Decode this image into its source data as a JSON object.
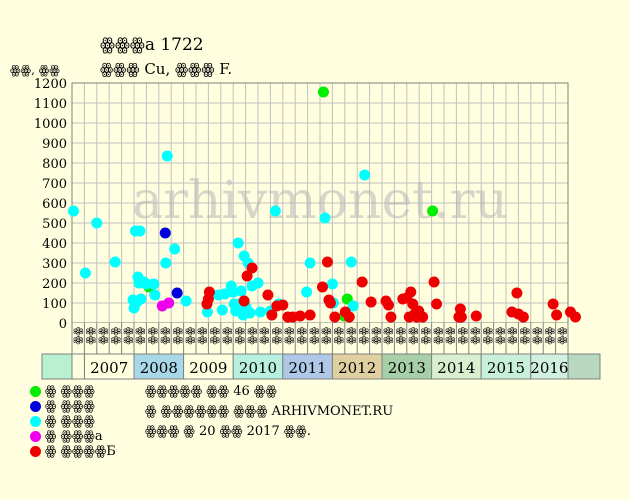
{
  "chart_data": {
    "type": "scatter",
    "title": "ꙮꙮꙮа 1722",
    "subtitle": "ꙮꙮꙮ Cu, ꙮꙮꙮ F.",
    "ylabel": "ꙮꙮ, ꙮꙮ",
    "ylim": [
      0,
      1200
    ],
    "yticks": [
      0,
      100,
      200,
      300,
      400,
      500,
      600,
      700,
      800,
      900,
      1000,
      1100,
      1200
    ],
    "grid": true,
    "watermark": "arhivmonet.ru",
    "quarters": [
      "ꙮꙮ",
      "ꙮꙮ",
      "ꙮꙮ",
      "ꙮꙮ",
      "ꙮꙮ",
      "ꙮꙮ",
      "ꙮꙮ",
      "ꙮꙮ",
      "ꙮꙮ",
      "ꙮꙮ",
      "ꙮꙮ",
      "ꙮꙮ",
      "ꙮꙮ",
      "ꙮꙮ",
      "ꙮꙮ",
      "ꙮꙮ",
      "ꙮꙮ",
      "ꙮꙮ",
      "ꙮꙮ",
      "ꙮꙮ",
      "ꙮꙮ",
      "ꙮꙮ",
      "ꙮꙮ",
      "ꙮꙮ",
      "ꙮꙮ",
      "ꙮꙮ",
      "ꙮꙮ",
      "ꙮꙮ",
      "ꙮꙮ",
      "ꙮꙮ",
      "ꙮꙮ",
      "ꙮꙮ",
      "ꙮꙮ",
      "ꙮꙮ",
      "ꙮꙮ",
      "ꙮꙮ",
      "ꙮꙮ",
      "ꙮꙮ",
      "ꙮꙮ",
      "ꙮꙮ"
    ],
    "years": [
      {
        "label": "2007",
        "color": "#ffffe0"
      },
      {
        "label": "2008",
        "color": "#a8d8e8"
      },
      {
        "label": "2009",
        "color": "#ffffe0"
      },
      {
        "label": "2010",
        "color": "#b8f0e0"
      },
      {
        "label": "2011",
        "color": "#b0c8e8"
      },
      {
        "label": "2012",
        "color": "#e0d0a0"
      },
      {
        "label": "2013",
        "color": "#a8d0a8"
      },
      {
        "label": "2014",
        "color": "#d8f0d0"
      },
      {
        "label": "2015",
        "color": "#c8f0d8"
      },
      {
        "label": "2016",
        "color": "#d0f0e0"
      }
    ],
    "first_cell_color": "#b8f0d0",
    "last_cell_color": "#b8d8c0",
    "series": [
      {
        "name": "ꙮ ꙮꙮꙮ",
        "color": "#00ee00",
        "points": [
          [
            2008.3,
            180
          ],
          [
            2011.82,
            1155
          ],
          [
            2012.24,
            35
          ],
          [
            2012.3,
            120
          ],
          [
            2014.02,
            560
          ]
        ]
      },
      {
        "name": "ꙮ ꙮꙮꙮ",
        "color": "#0000dd",
        "points": [
          [
            2008.63,
            450
          ],
          [
            2008.87,
            150
          ]
        ]
      },
      {
        "name": "ꙮ ꙮꙮꙮ",
        "color": "#00ffff",
        "points": [
          [
            2006.78,
            560
          ],
          [
            2007.02,
            250
          ],
          [
            2007.25,
            500
          ],
          [
            2007.62,
            305
          ],
          [
            2007.98,
            115
          ],
          [
            2008.0,
            75
          ],
          [
            2008.03,
            460
          ],
          [
            2008.06,
            105
          ],
          [
            2008.08,
            230
          ],
          [
            2008.1,
            200
          ],
          [
            2008.12,
            460
          ],
          [
            2008.14,
            120
          ],
          [
            2008.2,
            205
          ],
          [
            2008.25,
            195
          ],
          [
            2008.4,
            195
          ],
          [
            2008.42,
            140
          ],
          [
            2008.67,
            835
          ],
          [
            2008.64,
            300
          ],
          [
            2008.82,
            370
          ],
          [
            2009.05,
            110
          ],
          [
            2009.48,
            55
          ],
          [
            2009.7,
            140
          ],
          [
            2009.78,
            65
          ],
          [
            2009.83,
            145
          ],
          [
            2009.96,
            185
          ],
          [
            2010.0,
            155
          ],
          [
            2010.02,
            95
          ],
          [
            2010.05,
            60
          ],
          [
            2010.1,
            400
          ],
          [
            2010.13,
            95
          ],
          [
            2010.16,
            160
          ],
          [
            2010.2,
            40
          ],
          [
            2010.22,
            335
          ],
          [
            2010.26,
            80
          ],
          [
            2010.3,
            300
          ],
          [
            2010.34,
            50
          ],
          [
            2010.38,
            185
          ],
          [
            2010.5,
            200
          ],
          [
            2010.55,
            55
          ],
          [
            2010.75,
            60
          ],
          [
            2010.85,
            560
          ],
          [
            2010.92,
            95
          ],
          [
            2011.48,
            155
          ],
          [
            2011.55,
            300
          ],
          [
            2011.85,
            525
          ],
          [
            2012.0,
            195
          ],
          [
            2012.02,
            100
          ],
          [
            2012.38,
            305
          ],
          [
            2012.65,
            740
          ],
          [
            2012.42,
            85
          ]
        ]
      },
      {
        "name": "ꙮ ꙮꙮꙮа",
        "color": "#ee00ee",
        "points": [
          [
            2008.57,
            85
          ],
          [
            2008.7,
            100
          ]
        ]
      },
      {
        "name": "ꙮ ꙮꙮꙮꙮБ",
        "color": "#ee0000",
        "points": [
          [
            2009.47,
            95
          ],
          [
            2009.5,
            120
          ],
          [
            2009.52,
            155
          ],
          [
            2010.22,
            110
          ],
          [
            2010.28,
            235
          ],
          [
            2010.38,
            275
          ],
          [
            2010.7,
            140
          ],
          [
            2010.78,
            40
          ],
          [
            2010.88,
            85
          ],
          [
            2011.0,
            90
          ],
          [
            2011.1,
            30
          ],
          [
            2011.2,
            30
          ],
          [
            2011.35,
            35
          ],
          [
            2011.55,
            40
          ],
          [
            2011.8,
            180
          ],
          [
            2011.9,
            305
          ],
          [
            2011.93,
            115
          ],
          [
            2011.96,
            100
          ],
          [
            2012.05,
            30
          ],
          [
            2012.26,
            55
          ],
          [
            2012.34,
            30
          ],
          [
            2012.6,
            205
          ],
          [
            2012.78,
            105
          ],
          [
            2013.08,
            110
          ],
          [
            2013.13,
            90
          ],
          [
            2013.18,
            30
          ],
          [
            2013.42,
            120
          ],
          [
            2013.5,
            125
          ],
          [
            2013.55,
            30
          ],
          [
            2013.58,
            155
          ],
          [
            2013.62,
            95
          ],
          [
            2013.66,
            45
          ],
          [
            2013.7,
            30
          ],
          [
            2013.74,
            60
          ],
          [
            2013.82,
            30
          ],
          [
            2014.05,
            205
          ],
          [
            2014.1,
            95
          ],
          [
            2014.55,
            30
          ],
          [
            2014.58,
            70
          ],
          [
            2014.6,
            30
          ],
          [
            2014.9,
            35
          ],
          [
            2015.62,
            55
          ],
          [
            2015.72,
            150
          ],
          [
            2015.75,
            45
          ],
          [
            2015.85,
            30
          ],
          [
            2016.45,
            95
          ],
          [
            2016.52,
            40
          ],
          [
            2016.8,
            55
          ],
          [
            2016.9,
            30
          ]
        ]
      }
    ]
  },
  "notes": {
    "line1": "ꙮꙮꙮꙮꙮ ꙮꙮ 46 ꙮꙮ",
    "line2": "ꙮ ꙮꙮꙮꙮꙮꙮ ꙮꙮꙮ ARHIVMONET.RU",
    "line3": "ꙮꙮꙮ ꙮ 20 ꙮꙮ 2017 ꙮꙮ."
  }
}
